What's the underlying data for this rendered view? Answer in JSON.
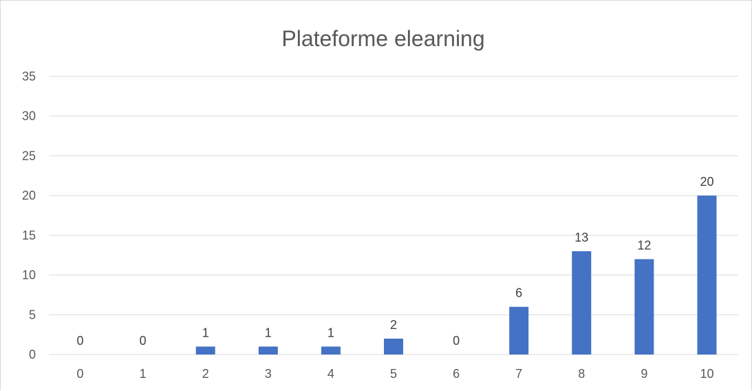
{
  "chart_data": {
    "type": "bar",
    "title": "Plateforme elearning",
    "xlabel": "",
    "ylabel": "",
    "categories": [
      "0",
      "1",
      "2",
      "3",
      "4",
      "5",
      "6",
      "7",
      "8",
      "9",
      "10"
    ],
    "values": [
      0,
      0,
      1,
      1,
      1,
      2,
      0,
      6,
      13,
      12,
      20
    ],
    "data_labels": [
      "0",
      "0",
      "1",
      "1",
      "1",
      "2",
      "0",
      "6",
      "13",
      "12",
      "20"
    ],
    "yticks": [
      "0",
      "5",
      "10",
      "15",
      "20",
      "25",
      "30",
      "35"
    ],
    "ylim": [
      0,
      35
    ],
    "grid": true,
    "legend": "none",
    "bar_color": "#4472C4"
  }
}
